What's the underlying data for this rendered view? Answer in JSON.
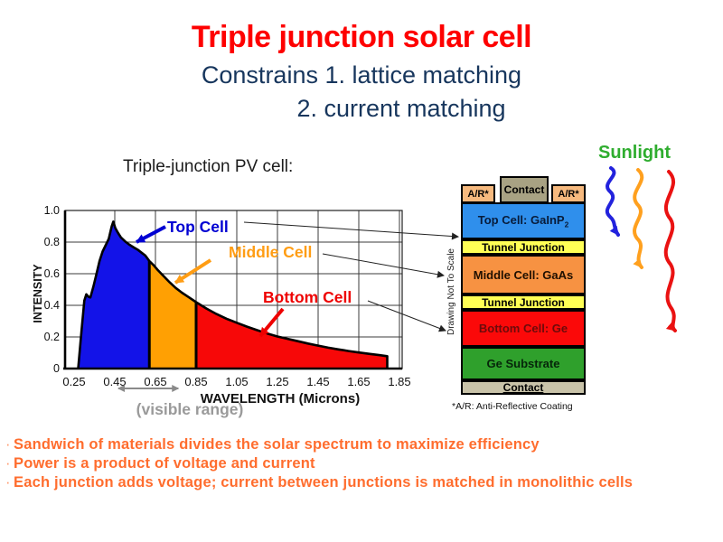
{
  "slide": {
    "title": "Triple junction solar cell",
    "subtitle_line1": "Constrains 1. lattice matching",
    "subtitle_line2": "2. current matching"
  },
  "colors": {
    "title": "#fe0000",
    "subtitle": "#17365d",
    "bullet_text": "#ff6d2e",
    "sunlight_label": "#2fad2f",
    "visible_range_gray": "#9a9a9a",
    "top_cell_blue": "#2f8fec",
    "tunnel_yellow": "#ffff55",
    "middle_cell_orange": "#f79242",
    "bottom_cell_red": "#fb0909",
    "substrate_green": "#2fa02c",
    "contact_gray": "#a8a283",
    "ar_peach": "#f6b97e"
  },
  "chart_data": {
    "type": "area",
    "title": "Triple-junction PV cell:",
    "xlabel": "WAVELENGTH (Microns)",
    "ylabel": "INTENSITY",
    "x_ticks": [
      0.25,
      0.45,
      0.65,
      0.85,
      1.05,
      1.25,
      1.45,
      1.65,
      1.85
    ],
    "y_ticks": [
      0,
      0.2,
      0.4,
      0.6,
      0.8,
      1.0
    ],
    "xlim": [
      0.25,
      1.87
    ],
    "ylim": [
      0,
      1.0
    ],
    "grid": true,
    "regions": [
      {
        "name": "Top Cell",
        "range": [
          0.27,
          0.62
        ],
        "fill": "#1313e8",
        "label_color": "#0000d2"
      },
      {
        "name": "Middle Cell",
        "range": [
          0.62,
          0.85
        ],
        "fill": "#ffa003",
        "label_color": "#ff9d14"
      },
      {
        "name": "Bottom Cell",
        "range": [
          0.85,
          1.79
        ],
        "fill": "#f70808",
        "label_color": "#ee0000"
      }
    ],
    "spectrum_points": [
      [
        0.27,
        0
      ],
      [
        0.285,
        0.22
      ],
      [
        0.3,
        0.43
      ],
      [
        0.31,
        0.47
      ],
      [
        0.32,
        0.455
      ],
      [
        0.33,
        0.45
      ],
      [
        0.345,
        0.52
      ],
      [
        0.36,
        0.6
      ],
      [
        0.375,
        0.68
      ],
      [
        0.39,
        0.74
      ],
      [
        0.405,
        0.78
      ],
      [
        0.42,
        0.82
      ],
      [
        0.435,
        0.9
      ],
      [
        0.443,
        0.93
      ],
      [
        0.452,
        0.89
      ],
      [
        0.465,
        0.86
      ],
      [
        0.48,
        0.83
      ],
      [
        0.5,
        0.805
      ],
      [
        0.52,
        0.785
      ],
      [
        0.545,
        0.765
      ],
      [
        0.565,
        0.75
      ],
      [
        0.585,
        0.73
      ],
      [
        0.6,
        0.715
      ],
      [
        0.62,
        0.68
      ],
      [
        0.64,
        0.655
      ],
      [
        0.66,
        0.625
      ],
      [
        0.69,
        0.585
      ],
      [
        0.72,
        0.545
      ],
      [
        0.75,
        0.51
      ],
      [
        0.78,
        0.48
      ],
      [
        0.81,
        0.455
      ],
      [
        0.85,
        0.42
      ],
      [
        0.9,
        0.38
      ],
      [
        0.95,
        0.345
      ],
      [
        1.0,
        0.315
      ],
      [
        1.05,
        0.29
      ],
      [
        1.1,
        0.265
      ],
      [
        1.15,
        0.243
      ],
      [
        1.2,
        0.222
      ],
      [
        1.25,
        0.203
      ],
      [
        1.3,
        0.188
      ],
      [
        1.35,
        0.173
      ],
      [
        1.4,
        0.158
      ],
      [
        1.45,
        0.145
      ],
      [
        1.5,
        0.132
      ],
      [
        1.55,
        0.121
      ],
      [
        1.6,
        0.111
      ],
      [
        1.65,
        0.102
      ],
      [
        1.7,
        0.093
      ],
      [
        1.75,
        0.085
      ],
      [
        1.79,
        0.078
      ]
    ],
    "visible_range": {
      "label": "(visible range)",
      "span": [
        0.45,
        0.78
      ]
    }
  },
  "stack": {
    "side_note": "Drawing Not To Scale",
    "footnote": "*A/R: Anti-Reflective Coating",
    "layers": [
      {
        "id": "contact-top",
        "label": "Contact"
      },
      {
        "id": "ar-left",
        "label": "A/R*"
      },
      {
        "id": "ar-right",
        "label": "A/R*"
      },
      {
        "id": "top-cell",
        "label_main": "Top Cell: GaInP",
        "label_sub": "2"
      },
      {
        "id": "tunnel-junction-1",
        "label": "Tunnel Junction"
      },
      {
        "id": "middle-cell",
        "label": "Middle Cell: GaAs"
      },
      {
        "id": "tunnel-junction-2",
        "label": "Tunnel Junction"
      },
      {
        "id": "bottom-cell",
        "label": "Bottom Cell: Ge"
      },
      {
        "id": "ge-substrate",
        "label": "Ge Substrate"
      },
      {
        "id": "contact-bottom",
        "label": "Contact"
      }
    ]
  },
  "sunlight": {
    "label": "Sunlight"
  },
  "bullets": [
    "Sandwich of materials divides the solar spectrum to maximize efficiency",
    "Power is a product of voltage and current",
    "Each junction adds voltage; current between junctions is matched in monolithic cells"
  ]
}
